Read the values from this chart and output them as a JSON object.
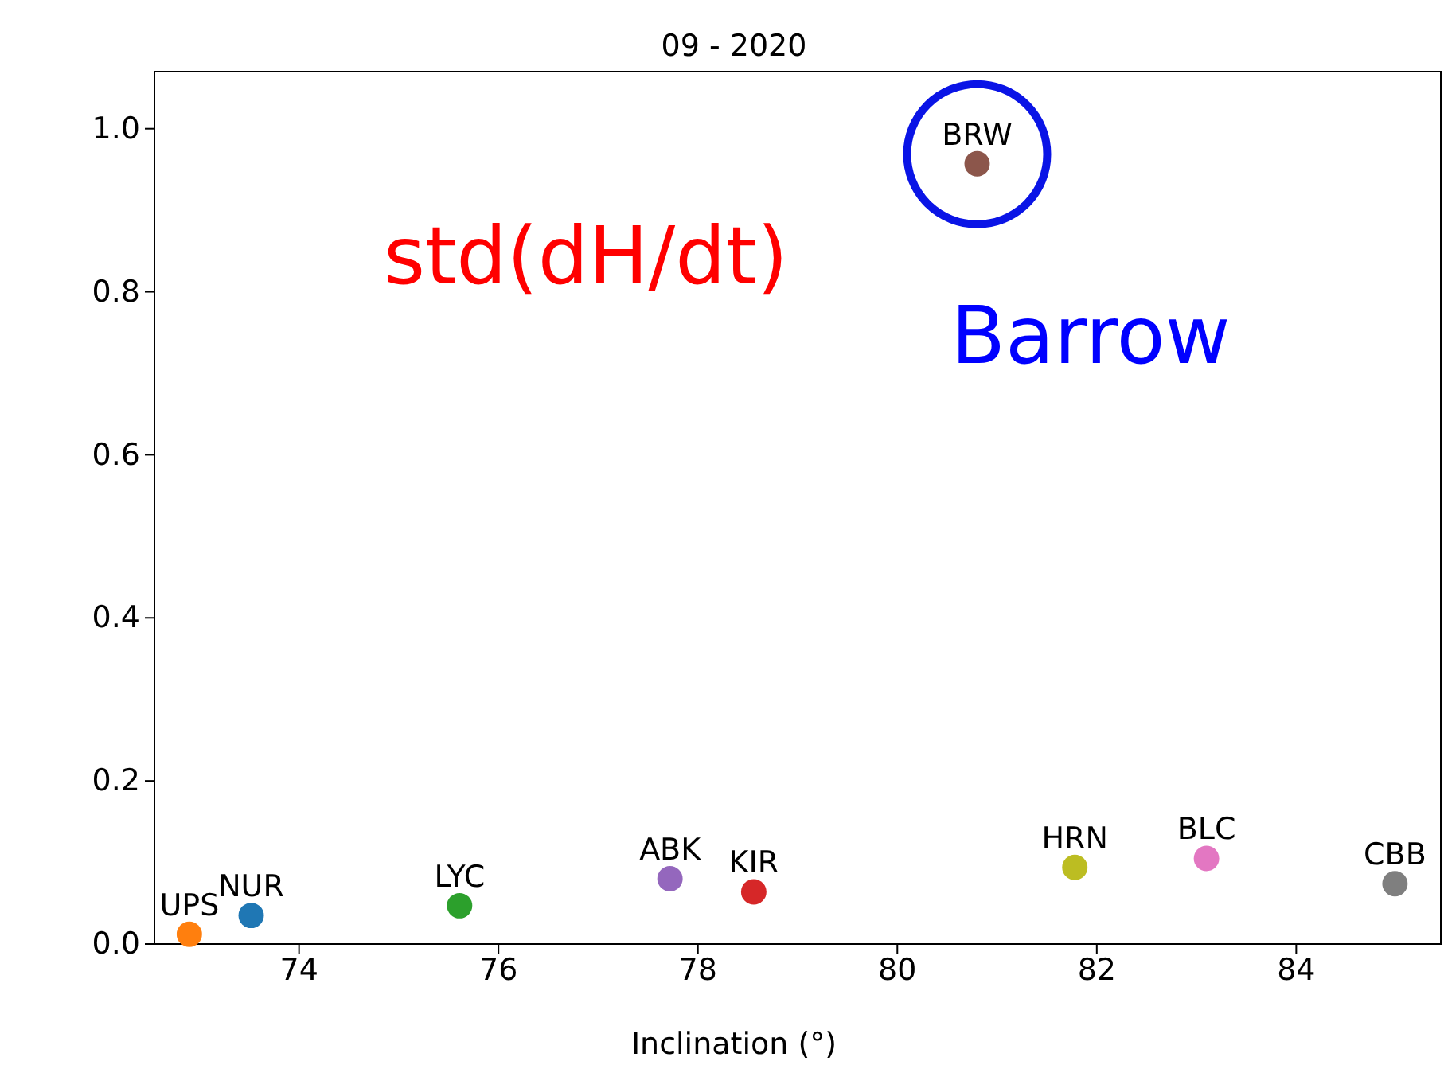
{
  "chart_data": {
    "type": "scatter",
    "title": "09 - 2020",
    "xlabel": "Inclination (°)",
    "xlim": [
      72.55,
      85.45
    ],
    "xticks": [
      74,
      76,
      78,
      80,
      82,
      84
    ],
    "ylim": [
      0,
      1.07
    ],
    "yticks": [
      {
        "value": 0,
        "label": "0.0"
      },
      {
        "value": 0.2,
        "label": "0.2"
      },
      {
        "value": 0.4,
        "label": "0.4"
      },
      {
        "value": 0.6,
        "label": "0.6"
      },
      {
        "value": 0.8,
        "label": "0.8"
      },
      {
        "value": 1,
        "label": "1.0"
      }
    ],
    "grid": false,
    "marker": "circle",
    "annotations": [
      "std(dH/dt)",
      "Barrow"
    ],
    "series": [
      {
        "name": "NUR",
        "color": "#1f77b4",
        "x": [
          73.52
        ],
        "values": [
          0.035
        ]
      },
      {
        "name": "UPS",
        "color": "#ff7f0e",
        "x": [
          72.9
        ],
        "values": [
          0.012
        ]
      },
      {
        "name": "LYC",
        "color": "#2ca02c",
        "x": [
          75.61
        ],
        "values": [
          0.047
        ]
      },
      {
        "name": "KIR",
        "color": "#d62728",
        "x": [
          78.56
        ],
        "values": [
          0.064
        ]
      },
      {
        "name": "ABK",
        "color": "#9467bd",
        "x": [
          77.72
        ],
        "values": [
          0.08
        ]
      },
      {
        "name": "BRW",
        "color": "#8c564b",
        "x": [
          80.8
        ],
        "values": [
          0.957
        ]
      },
      {
        "name": "BLC",
        "color": "#e377c2",
        "x": [
          83.1
        ],
        "values": [
          0.105
        ]
      },
      {
        "name": "CBB",
        "color": "#7f7f7f",
        "x": [
          84.99
        ],
        "values": [
          0.074
        ]
      },
      {
        "name": "HRN",
        "color": "#bcbd22",
        "x": [
          81.78
        ],
        "values": [
          0.094
        ]
      }
    ]
  }
}
